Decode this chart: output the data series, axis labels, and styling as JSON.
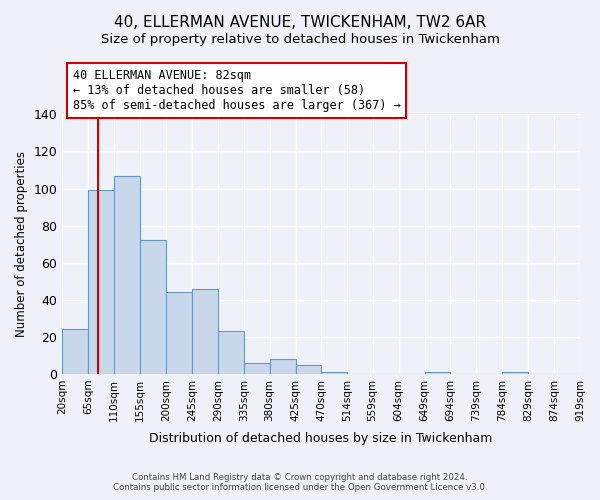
{
  "title": "40, ELLERMAN AVENUE, TWICKENHAM, TW2 6AR",
  "subtitle": "Size of property relative to detached houses in Twickenham",
  "xlabel": "Distribution of detached houses by size in Twickenham",
  "ylabel": "Number of detached properties",
  "bar_values": [
    24,
    99,
    107,
    72,
    44,
    46,
    23,
    6,
    8,
    5,
    1,
    0,
    0,
    0,
    1,
    0,
    0,
    1,
    0,
    0
  ],
  "bin_labels": [
    "20sqm",
    "65sqm",
    "110sqm",
    "155sqm",
    "200sqm",
    "245sqm",
    "290sqm",
    "335sqm",
    "380sqm",
    "425sqm",
    "470sqm",
    "514sqm",
    "559sqm",
    "604sqm",
    "649sqm",
    "694sqm",
    "739sqm",
    "784sqm",
    "829sqm",
    "874sqm",
    "919sqm"
  ],
  "bar_color": "#c8d8ea",
  "bar_edge_color": "#6699bb",
  "bin_edges": [
    20,
    65,
    110,
    155,
    200,
    245,
    290,
    335,
    380,
    425,
    470,
    514,
    559,
    604,
    649,
    694,
    739,
    784,
    829,
    874,
    919
  ],
  "vline_color": "#cc0000",
  "ylim": [
    0,
    140
  ],
  "yticks": [
    0,
    20,
    40,
    60,
    80,
    100,
    120,
    140
  ],
  "annotation_title": "40 ELLERMAN AVENUE: 82sqm",
  "annotation_line1": "← 13% of detached houses are smaller (58)",
  "annotation_line2": "85% of semi-detached houses are larger (367) →",
  "annotation_box_color": "#ffffff",
  "annotation_box_edge": "#cc0000",
  "footer1": "Contains HM Land Registry data © Crown copyright and database right 2024.",
  "footer2": "Contains public sector information licensed under the Open Government Licence v3.0.",
  "bg_color": "#eef2f8",
  "grid_color": "#ffffff",
  "title_fontsize": 11,
  "subtitle_fontsize": 9.5,
  "vline_x": 82
}
